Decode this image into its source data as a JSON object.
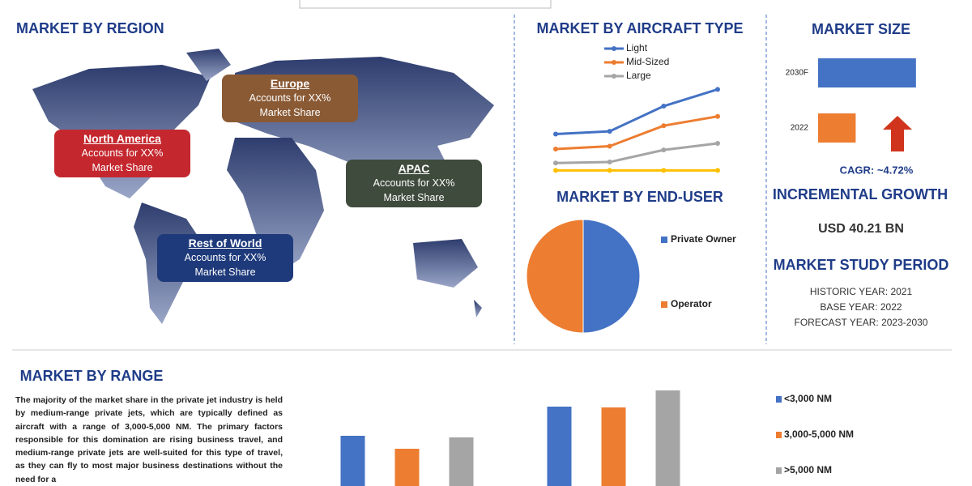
{
  "region": {
    "title": "MARKET BY REGION",
    "callouts": [
      {
        "name": "Europe",
        "lines": [
          "Accounts for XX%",
          "Market Share"
        ],
        "color": "#8a5a35"
      },
      {
        "name": "North America",
        "lines": [
          "Accounts for XX%",
          "Market Share"
        ],
        "color": "#c4272e"
      },
      {
        "name": "APAC",
        "lines": [
          "Accounts for XX%",
          "Market Share"
        ],
        "color": "#3f4b3c"
      },
      {
        "name": "Rest of World",
        "lines": [
          "Accounts for XX%",
          "Market Share"
        ],
        "color": "#1e3a7b"
      }
    ]
  },
  "summary": {
    "market_size_title": "MARKET SIZE",
    "cagr": "CAGR:  ~4.72%",
    "incremental_title": "INCREMENTAL GROWTH",
    "incremental_value": "USD 40.21 BN",
    "period_title": "MARKET STUDY PERIOD",
    "period_lines": [
      "HISTORIC YEAR: 2021",
      "BASE YEAR: 2022",
      "FORECAST YEAR: 2023-2030"
    ]
  },
  "range_text": "The majority of the market share in the private jet industry is held by medium-range private jets, which are typically defined as aircraft with a range of 3,000-5,000 NM. The primary factors responsible for this domination are rising business travel, and medium-range private jets are well-suited for this type of travel, as they can fly to most major business destinations without the need for a",
  "chart_data": [
    {
      "type": "line",
      "title": "MARKET BY AIRCRAFT TYPE",
      "categories": [
        null,
        null,
        null,
        null
      ],
      "ylim": [
        0,
        100
      ],
      "series": [
        {
          "name": "Light",
          "color": "#4472c4",
          "values": [
            43,
            46,
            73,
            91
          ]
        },
        {
          "name": "Mid-Sized",
          "color": "#ed7d31",
          "values": [
            27,
            30,
            52,
            62
          ]
        },
        {
          "name": "Large",
          "color": "#a5a5a5",
          "values": [
            12,
            13,
            26,
            33
          ]
        },
        {
          "color": "#ffc000",
          "values": [
            4,
            4,
            4,
            4
          ]
        }
      ]
    },
    {
      "type": "pie",
      "title": "MARKET BY END-USER",
      "categories": [
        "Private Owner",
        "Operator"
      ],
      "values": [
        50,
        50
      ],
      "colors": [
        "#4472c4",
        "#ed7d31"
      ]
    },
    {
      "type": "hbar",
      "categories": [
        "2030F",
        "2022"
      ],
      "values": [
        125,
        48
      ],
      "xlim": [
        0,
        150
      ],
      "colors": [
        "#4472c4",
        "#ed7d31"
      ]
    },
    {
      "type": "groupbar",
      "title": "MARKET BY RANGE",
      "categories": [
        null,
        null
      ],
      "ylim": [
        0,
        130
      ],
      "series": [
        {
          "name": "<3,000 NM",
          "color": "#4472c4",
          "values": [
            62,
            98
          ]
        },
        {
          "name": "3,000-5,000 NM",
          "color": "#ed7d31",
          "values": [
            46,
            97
          ]
        },
        {
          "name": ">5,000 NM",
          "color": "#a5a5a5",
          "values": [
            60,
            118
          ]
        }
      ]
    }
  ]
}
